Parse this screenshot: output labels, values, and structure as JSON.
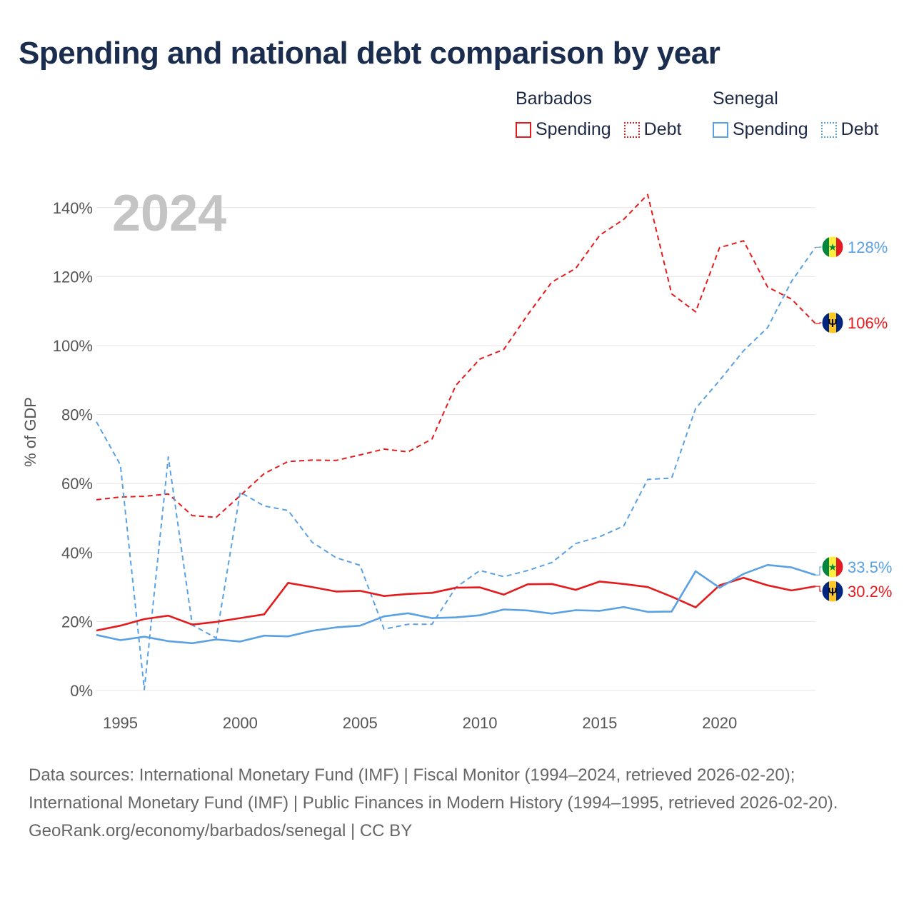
{
  "title": "Spending and national debt comparison by year",
  "legend": {
    "barbados": {
      "label": "Barbados",
      "spending": "Spending",
      "debt": "Debt",
      "color": "#e41a1c"
    },
    "senegal": {
      "label": "Senegal",
      "spending": "Spending",
      "debt": "Debt",
      "color": "#5aa1e3"
    }
  },
  "chart_data": {
    "type": "line",
    "title": "Spending and national debt comparison by year",
    "year_label": "2024",
    "ylabel": "% of GDP",
    "xlabel": "",
    "xlim": [
      1994,
      2024
    ],
    "ylim": [
      0,
      145
    ],
    "y_ticks": [
      0,
      20,
      40,
      60,
      80,
      100,
      120,
      140
    ],
    "y_tick_labels": [
      "0%",
      "20%",
      "40%",
      "60%",
      "80%",
      "100%",
      "120%",
      "140%"
    ],
    "x_ticks": [
      1995,
      2000,
      2005,
      2010,
      2015,
      2020
    ],
    "x_tick_labels": [
      "1995",
      "2000",
      "2005",
      "2010",
      "2015",
      "2020"
    ],
    "grid": true,
    "x": [
      1994,
      1995,
      1996,
      1997,
      1998,
      1999,
      2000,
      2001,
      2002,
      2003,
      2004,
      2005,
      2006,
      2007,
      2008,
      2009,
      2010,
      2011,
      2012,
      2013,
      2014,
      2015,
      2016,
      2017,
      2018,
      2019,
      2020,
      2021,
      2022,
      2023,
      2024
    ],
    "series": [
      {
        "name": "Barbados Debt",
        "country": "Barbados",
        "kind": "Debt",
        "color": "#e41a1c",
        "dash": true,
        "values": [
          55.3,
          56.1,
          56.3,
          57.0,
          50.7,
          50.2,
          56.5,
          62.9,
          66.4,
          66.8,
          66.7,
          68.3,
          70.0,
          69.2,
          72.9,
          88.5,
          96.1,
          98.9,
          109.0,
          118.4,
          122.4,
          132.0,
          136.6,
          143.8,
          115.0,
          109.8,
          128.4,
          130.4,
          117.0,
          113.5,
          106.4
        ],
        "end_label": "106%"
      },
      {
        "name": "Senegal Debt",
        "country": "Senegal",
        "kind": "Debt",
        "color": "#5aa1e3",
        "dash": true,
        "values": [
          77.9,
          65.4,
          0.3,
          67.7,
          19.0,
          15.2,
          57.5,
          53.5,
          52.2,
          43.0,
          38.5,
          36.3,
          17.8,
          19.2,
          19.2,
          29.9,
          34.8,
          33.0,
          34.8,
          37.1,
          42.6,
          44.6,
          47.7,
          61.2,
          61.6,
          81.8,
          89.9,
          98.5,
          105.2,
          118.6,
          128.5
        ],
        "end_label": "128%"
      },
      {
        "name": "Barbados Spending",
        "country": "Barbados",
        "kind": "Spending",
        "color": "#e41a1c",
        "dash": false,
        "values": [
          17.4,
          18.8,
          20.7,
          21.7,
          19.1,
          19.9,
          21.0,
          22.1,
          31.2,
          30.0,
          28.7,
          28.9,
          27.4,
          28.0,
          28.3,
          29.8,
          29.9,
          27.8,
          30.8,
          30.9,
          29.2,
          31.6,
          30.9,
          30.0,
          27.2,
          24.1,
          30.5,
          32.7,
          30.5,
          29.0,
          30.2
        ],
        "end_label": "30.2%"
      },
      {
        "name": "Senegal Spending",
        "country": "Senegal",
        "kind": "Spending",
        "color": "#5aa1e3",
        "dash": false,
        "values": [
          16.1,
          14.6,
          15.6,
          14.3,
          13.7,
          14.8,
          14.2,
          15.9,
          15.7,
          17.3,
          18.3,
          18.8,
          21.5,
          22.4,
          21.0,
          21.2,
          21.8,
          23.5,
          23.2,
          22.3,
          23.3,
          23.1,
          24.2,
          22.8,
          22.9,
          34.6,
          29.8,
          33.8,
          36.4,
          35.7,
          33.5
        ],
        "end_label": "33.5%"
      }
    ]
  },
  "footer": {
    "sources": "Data sources: International Monetary Fund (IMF) | Fiscal Monitor (1994–2024, retrieved 2026-02-20); International Monetary Fund (IMF) | Public Finances in Modern History (1994–1995, retrieved 2026-02-20).",
    "credit": "GeoRank.org/economy/barbados/senegal | CC BY"
  }
}
